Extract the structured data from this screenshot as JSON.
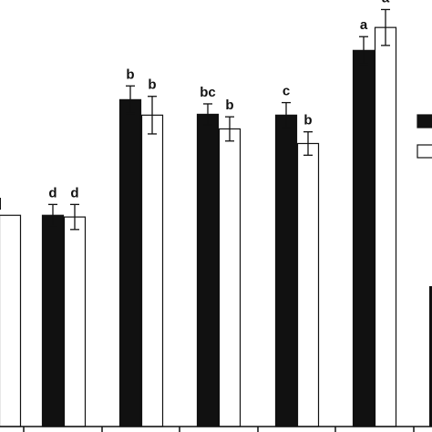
{
  "chart_data": {
    "type": "bar",
    "title": "",
    "xlabel": "",
    "ylabel": "",
    "ylim": [
      0,
      100
    ],
    "grid": false,
    "legend": "right",
    "colors": {
      "series_black": "#111111",
      "series_white": "#ffffff",
      "axis": "#111111"
    },
    "categories": [
      "",
      "",
      "",
      "",
      "",
      ""
    ],
    "series": [
      {
        "fill": "#111111",
        "values": [
          null,
          50.6,
          78.3,
          74.8,
          74.6,
          90.1
        ],
        "errors": [
          null,
          2.6,
          3.3,
          2.5,
          3.0,
          3.3
        ],
        "labels": [
          "",
          "d",
          "b",
          "bc",
          "c",
          "a"
        ]
      },
      {
        "fill": "#ffffff",
        "values": [
          50.6,
          50.2,
          74.6,
          71.3,
          67.8,
          95.6
        ],
        "errors": [
          null,
          3.0,
          4.5,
          2.9,
          2.8,
          4.3
        ],
        "labels": [
          "",
          "d",
          "b",
          "b",
          "b",
          "a"
        ]
      }
    ]
  }
}
